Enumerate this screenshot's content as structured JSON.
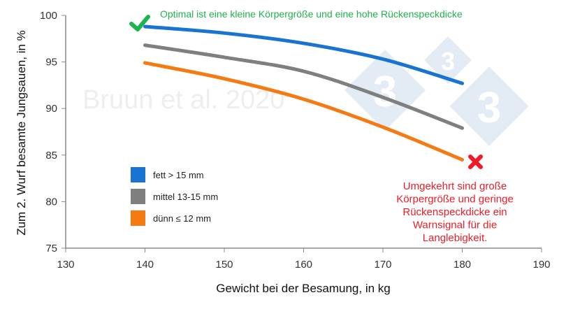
{
  "chart_data": {
    "type": "line",
    "title": "",
    "xlabel": "Gewicht bei der Besamung, in kg",
    "ylabel": "Zum 2. Wurf besamte Jungsauen, in %",
    "xlim": [
      130,
      190
    ],
    "ylim": [
      75,
      100
    ],
    "xticks": [
      130,
      140,
      150,
      160,
      170,
      180,
      190
    ],
    "yticks": [
      75,
      80,
      85,
      90,
      95,
      100
    ],
    "grid": false,
    "legend_placement": "lower-left",
    "x": [
      140,
      150,
      160,
      170,
      180
    ],
    "series": [
      {
        "name": "fett > 15 mm",
        "color": "#1874d2",
        "values": [
          98.8,
          98.1,
          97.0,
          95.3,
          92.7
        ]
      },
      {
        "name": "mittel 13-15 mm",
        "color": "#7f7f7f",
        "values": [
          96.8,
          95.5,
          94.0,
          91.2,
          87.9
        ]
      },
      {
        "name": "dünn ≤ 12 mm",
        "color": "#f57a12",
        "values": [
          94.9,
          93.2,
          91.0,
          88.0,
          84.5
        ]
      }
    ],
    "annotations": {
      "optimal": {
        "text": "Optimal ist eine kleine Körpergröße und eine hohe Rückenspeckdicke",
        "color": "#1db34d",
        "icon": "check-icon"
      },
      "warning": {
        "lines": [
          "Umgekehrt sind große",
          "Körpergröße und geringe",
          "Rückenspeckdicke ein",
          "Warnsignal für die",
          "Langlebigkeit."
        ],
        "color": "#ee1c25",
        "icon": "cross-icon"
      }
    },
    "watermark": "Bruun et al. 2020",
    "logo": "333"
  }
}
